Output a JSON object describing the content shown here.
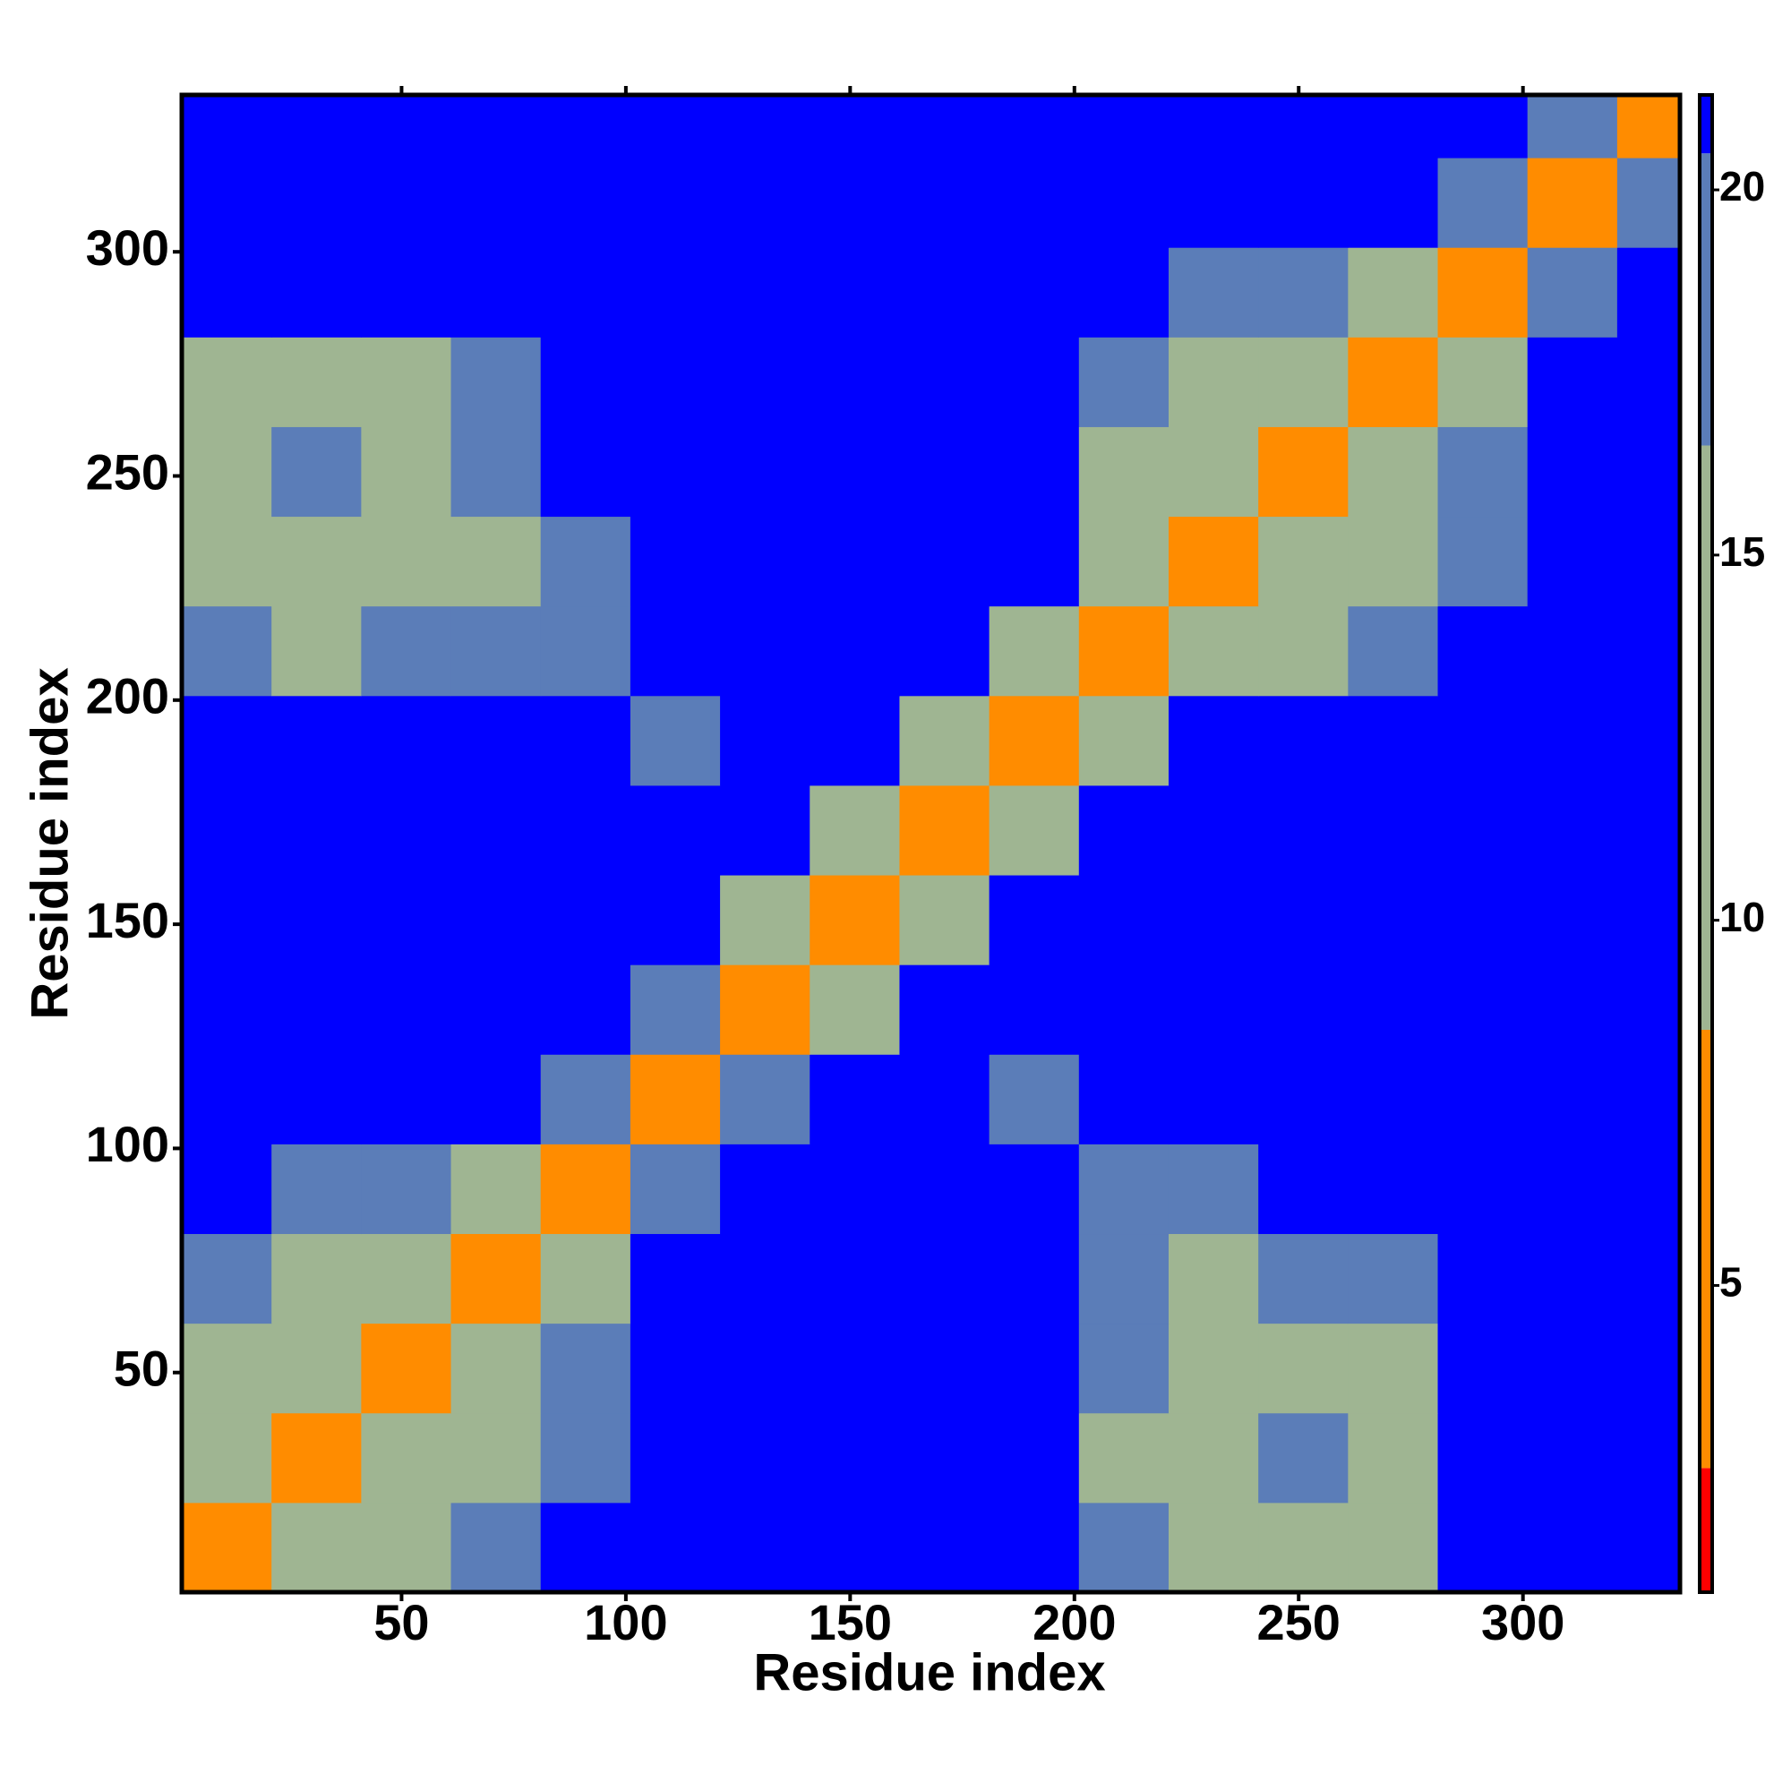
{
  "chart_data": {
    "type": "heatmap",
    "x_label": "Residue index",
    "y_label": "Residue index",
    "xlim": [
      1,
      335
    ],
    "ylim": [
      1,
      335
    ],
    "xticks": [
      50,
      100,
      150,
      200,
      250,
      300
    ],
    "yticks": [
      50,
      100,
      150,
      200,
      250,
      300
    ],
    "xbins": [
      1,
      21,
      41,
      61,
      81,
      101,
      121,
      141,
      161,
      181,
      201,
      221,
      241,
      261,
      281,
      301,
      321,
      335
    ],
    "ybins": [
      1,
      21,
      41,
      61,
      81,
      101,
      121,
      141,
      161,
      181,
      201,
      221,
      241,
      261,
      281,
      301,
      321,
      335
    ],
    "z": [
      [
        4,
        12,
        14,
        18,
        21,
        21,
        21,
        21,
        21,
        21,
        20,
        15,
        15,
        15,
        21,
        21,
        21
      ],
      [
        12,
        4,
        11,
        13,
        20,
        21,
        21,
        21,
        21,
        21,
        16,
        14,
        17,
        16,
        21,
        21,
        21
      ],
      [
        14,
        11,
        4,
        11,
        17,
        21,
        21,
        21,
        21,
        21,
        19,
        14,
        16,
        15,
        21,
        21,
        21
      ],
      [
        18,
        13,
        11,
        4,
        12,
        21,
        21,
        21,
        21,
        21,
        17,
        16,
        19,
        19,
        21,
        21,
        21
      ],
      [
        21,
        20,
        17,
        12,
        4,
        18,
        21,
        21,
        21,
        21,
        17,
        19,
        21,
        21,
        21,
        21,
        21
      ],
      [
        21,
        21,
        21,
        21,
        18,
        4,
        18,
        21,
        21,
        18,
        21,
        21,
        21,
        21,
        21,
        21,
        21
      ],
      [
        21,
        21,
        21,
        21,
        21,
        18,
        4,
        14,
        21,
        21,
        21,
        21,
        21,
        21,
        21,
        21,
        21
      ],
      [
        21,
        21,
        21,
        21,
        21,
        21,
        14,
        4,
        13,
        21,
        21,
        21,
        21,
        21,
        21,
        21,
        21
      ],
      [
        21,
        21,
        21,
        21,
        21,
        21,
        21,
        13,
        4,
        14,
        21,
        21,
        21,
        21,
        21,
        21,
        21
      ],
      [
        21,
        21,
        21,
        21,
        21,
        18,
        21,
        21,
        14,
        4,
        13,
        21,
        21,
        21,
        21,
        21,
        21
      ],
      [
        20,
        16,
        19,
        17,
        17,
        21,
        21,
        21,
        21,
        13,
        4,
        13,
        15,
        19,
        21,
        21,
        21
      ],
      [
        15,
        14,
        14,
        16,
        19,
        21,
        21,
        21,
        21,
        21,
        13,
        4,
        10,
        13,
        20,
        21,
        21
      ],
      [
        15,
        17,
        16,
        19,
        21,
        21,
        21,
        21,
        21,
        21,
        15,
        10,
        4,
        10,
        17,
        21,
        21
      ],
      [
        15,
        16,
        15,
        19,
        21,
        21,
        21,
        21,
        21,
        21,
        19,
        13,
        10,
        4,
        15,
        21,
        21
      ],
      [
        21,
        21,
        21,
        21,
        21,
        21,
        21,
        21,
        21,
        21,
        21,
        20,
        17,
        15,
        4,
        19,
        21
      ],
      [
        21,
        21,
        21,
        21,
        21,
        21,
        21,
        21,
        21,
        21,
        21,
        21,
        21,
        21,
        19,
        4,
        19
      ],
      [
        21,
        21,
        21,
        21,
        21,
        21,
        21,
        21,
        21,
        21,
        21,
        21,
        21,
        21,
        21,
        19,
        4
      ]
    ],
    "clim": [
      0.8,
      21.3
    ],
    "cticks": [
      5,
      10,
      15,
      20
    ],
    "color_breaks": [
      2.5,
      8.5,
      16.5,
      20.5
    ],
    "colors": [
      "#ff0000",
      "#ff8c00",
      "#9fb592",
      "#5b7db8",
      "#0000ff"
    ]
  }
}
